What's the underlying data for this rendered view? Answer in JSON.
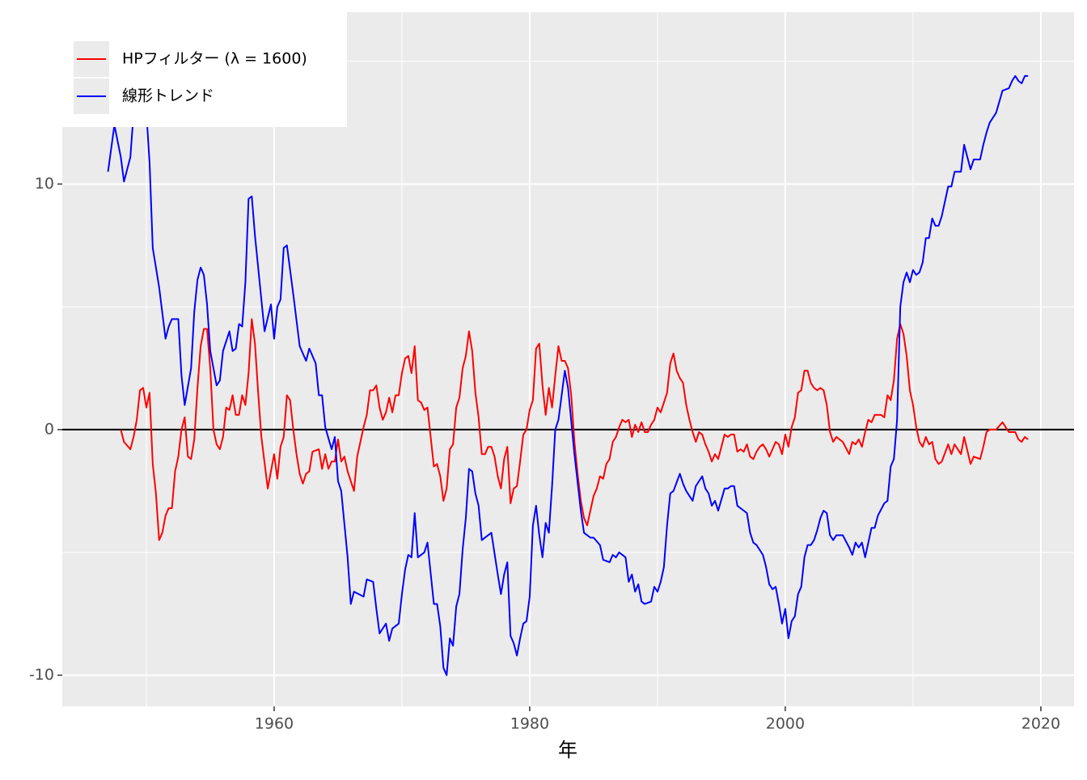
{
  "chart_data": {
    "type": "line",
    "x_label": "年",
    "xlim": [
      1943.42,
      2022.6
    ],
    "ylim": [
      -11.27,
      17.0
    ],
    "xticks": [
      1960,
      1980,
      2000,
      2020
    ],
    "yticks": [
      -10,
      0,
      10
    ],
    "grid": true,
    "hline": 0,
    "legend": "top-left",
    "series": [
      {
        "name": "HPフィルター (λ = 1600)",
        "color": "#ff0000",
        "x": [
          1948.0,
          1948.25,
          1948.75,
          1949.0,
          1949.25,
          1949.5,
          1949.75,
          1950.0,
          1950.25,
          1950.5,
          1950.75,
          1951.0,
          1951.25,
          1951.5,
          1951.75,
          1952.0,
          1952.25,
          1952.5,
          1952.75,
          1953.0,
          1953.25,
          1953.5,
          1953.75,
          1954.0,
          1954.25,
          1954.5,
          1954.75,
          1955.0,
          1955.25,
          1955.5,
          1955.75,
          1956.0,
          1956.25,
          1956.5,
          1956.75,
          1957.0,
          1957.25,
          1957.5,
          1957.75,
          1958.0,
          1958.25,
          1958.5,
          1958.75,
          1959.0,
          1959.5,
          1959.75,
          1960.0,
          1960.25,
          1960.5,
          1960.75,
          1961.0,
          1961.25,
          1961.5,
          1961.75,
          1962.0,
          1962.25,
          1962.5,
          1962.75,
          1963.0,
          1963.5,
          1963.75,
          1964.0,
          1964.25,
          1964.5,
          1964.75,
          1965.0,
          1965.25,
          1965.5,
          1965.75,
          1966.0,
          1966.25,
          1966.5,
          1966.75,
          1967.0,
          1967.25,
          1967.5,
          1967.75,
          1968.0,
          1968.25,
          1968.5,
          1968.75,
          1969.0,
          1969.25,
          1969.5,
          1969.75,
          1970.0,
          1970.25,
          1970.5,
          1970.75,
          1971.0,
          1971.25,
          1971.5,
          1971.75,
          1972.0,
          1972.25,
          1972.5,
          1972.75,
          1973.0,
          1973.25,
          1973.5,
          1973.75,
          1974.0,
          1974.25,
          1974.5,
          1974.75,
          1975.0,
          1975.25,
          1975.5,
          1975.75,
          1976.0,
          1976.25,
          1976.5,
          1976.75,
          1977.0,
          1977.25,
          1977.5,
          1977.75,
          1978.0,
          1978.25,
          1978.5,
          1978.75,
          1979.0,
          1979.25,
          1979.5,
          1979.75,
          1980.0,
          1980.25,
          1980.5,
          1980.75,
          1981.0,
          1981.25,
          1981.5,
          1981.75,
          1982.0,
          1982.25,
          1982.5,
          1982.75,
          1983.0,
          1983.25,
          1983.5,
          1983.75,
          1984.0,
          1984.25,
          1984.5,
          1984.75,
          1985.0,
          1985.25,
          1985.5,
          1985.75,
          1986.0,
          1986.25,
          1986.5,
          1986.75,
          1987.0,
          1987.25,
          1987.5,
          1987.75,
          1988.0,
          1988.25,
          1988.5,
          1988.75,
          1989.0,
          1989.25,
          1989.5,
          1989.75,
          1990.0,
          1990.25,
          1990.5,
          1990.75,
          1991.0,
          1991.25,
          1991.5,
          1991.75,
          1992.0,
          1992.25,
          1992.5,
          1992.75,
          1993.0,
          1993.25,
          1993.5,
          1993.75,
          1994.0,
          1994.25,
          1994.5,
          1994.75,
          1995.0,
          1995.25,
          1995.5,
          1995.75,
          1996.0,
          1996.25,
          1996.5,
          1996.75,
          1997.0,
          1997.25,
          1997.5,
          1997.75,
          1998.0,
          1998.25,
          1998.5,
          1998.75,
          1999.0,
          1999.25,
          1999.5,
          1999.75,
          2000.0,
          2000.25,
          2000.5,
          2000.75,
          2001.0,
          2001.25,
          2001.5,
          2001.75,
          2002.0,
          2002.25,
          2002.5,
          2002.75,
          2003.0,
          2003.25,
          2003.5,
          2003.75,
          2004.0,
          2004.5,
          2005.0,
          2005.25,
          2005.5,
          2005.75,
          2006.0,
          2006.25,
          2006.5,
          2006.75,
          2007.0,
          2007.5,
          2007.75,
          2008.0,
          2008.25,
          2008.5,
          2008.75,
          2009.0,
          2009.25,
          2009.5,
          2009.75,
          2010.0,
          2010.25,
          2010.5,
          2010.75,
          2011.0,
          2011.25,
          2011.5,
          2011.75,
          2012.0,
          2012.25,
          2012.75,
          2013.0,
          2013.25,
          2013.75,
          2014.0,
          2014.5,
          2014.75,
          2015.25,
          2015.5,
          2015.75,
          2016.0,
          2016.5,
          2017.0,
          2017.25,
          2017.5,
          2018.0,
          2018.25,
          2018.5,
          2018.75,
          2019.0
        ],
        "values": [
          0.0,
          -0.5,
          -0.8,
          -0.3,
          0.4,
          1.6,
          1.7,
          0.9,
          1.5,
          -1.4,
          -2.6,
          -4.5,
          -4.2,
          -3.5,
          -3.2,
          -3.2,
          -1.7,
          -1.1,
          0.0,
          0.5,
          -1.1,
          -1.2,
          -0.4,
          1.7,
          3.4,
          4.1,
          4.1,
          2.5,
          0.0,
          -0.6,
          -0.8,
          -0.3,
          0.9,
          0.8,
          1.4,
          0.6,
          0.6,
          1.4,
          1.0,
          2.3,
          4.5,
          3.5,
          1.5,
          -0.3,
          -2.4,
          -1.7,
          -1.0,
          -2.0,
          -0.7,
          -0.3,
          1.4,
          1.2,
          0.0,
          -1.0,
          -1.8,
          -2.2,
          -1.8,
          -1.7,
          -0.9,
          -0.8,
          -1.6,
          -1.0,
          -1.6,
          -1.3,
          -1.3,
          -0.4,
          -1.3,
          -1.1,
          -1.7,
          -2.1,
          -2.5,
          -1.1,
          -0.5,
          0.1,
          0.6,
          1.6,
          1.6,
          1.8,
          0.9,
          0.4,
          0.7,
          1.3,
          0.7,
          1.4,
          1.4,
          2.3,
          2.9,
          3.0,
          2.3,
          3.4,
          1.2,
          1.1,
          0.8,
          0.9,
          -0.3,
          -1.5,
          -1.4,
          -1.9,
          -2.9,
          -2.4,
          -0.8,
          -0.6,
          0.9,
          1.3,
          2.5,
          3.0,
          4.0,
          3.2,
          1.5,
          0.5,
          -1.0,
          -1.0,
          -0.7,
          -0.7,
          -1.1,
          -1.9,
          -2.4,
          -1.2,
          -0.7,
          -3.0,
          -2.4,
          -2.3,
          -1.3,
          -0.2,
          0.0,
          0.8,
          1.2,
          3.3,
          3.5,
          1.8,
          0.6,
          1.7,
          0.9,
          2.2,
          3.4,
          2.8,
          2.8,
          2.5,
          1.4,
          -0.5,
          -1.8,
          -2.9,
          -3.6,
          -3.9,
          -3.3,
          -2.7,
          -2.4,
          -1.9,
          -2.0,
          -1.4,
          -1.2,
          -0.5,
          -0.3,
          0.1,
          0.4,
          0.3,
          0.4,
          -0.3,
          0.2,
          -0.1,
          0.3,
          -0.1,
          -0.1,
          0.2,
          0.4,
          0.9,
          0.7,
          1.1,
          1.5,
          2.7,
          3.1,
          2.4,
          2.1,
          1.9,
          1.0,
          0.4,
          -0.1,
          -0.5,
          -0.1,
          -0.2,
          -0.6,
          -0.9,
          -1.3,
          -1.0,
          -1.2,
          -0.7,
          -0.2,
          -0.3,
          -0.2,
          -0.2,
          -0.9,
          -0.8,
          -0.9,
          -0.6,
          -1.1,
          -1.2,
          -0.9,
          -0.7,
          -0.6,
          -0.8,
          -1.1,
          -0.8,
          -0.5,
          -0.6,
          -1.0,
          -0.2,
          -0.7,
          0.1,
          0.5,
          1.5,
          1.6,
          2.4,
          2.4,
          1.9,
          1.7,
          1.6,
          1.7,
          1.6,
          1.0,
          -0.1,
          -0.5,
          -0.3,
          -0.5,
          -1.0,
          -0.5,
          -0.6,
          -0.4,
          -0.7,
          -0.1,
          0.4,
          0.3,
          0.6,
          0.6,
          0.5,
          1.4,
          1.2,
          2.0,
          3.7,
          4.3,
          3.9,
          3.0,
          1.6,
          1.0,
          0.1,
          -0.5,
          -0.7,
          -0.3,
          -0.6,
          -0.5,
          -1.2,
          -1.4,
          -1.3,
          -0.6,
          -1.0,
          -0.6,
          -1.0,
          -0.3,
          -1.4,
          -1.1,
          -1.2,
          -0.7,
          -0.1,
          0.0,
          0.0,
          0.3,
          0.1,
          -0.1,
          -0.1,
          -0.4,
          -0.5,
          -0.3,
          -0.4
        ]
      },
      {
        "name": "線形トレンド",
        "color": "#0000ff",
        "x": [
          1947.0,
          1947.5,
          1948.0,
          1948.25,
          1948.75,
          1949.0,
          1949.5,
          1950.0,
          1950.25,
          1950.5,
          1951.0,
          1951.5,
          1951.75,
          1952.0,
          1952.5,
          1952.75,
          1953.0,
          1953.5,
          1953.75,
          1954.0,
          1954.25,
          1954.5,
          1954.75,
          1955.0,
          1955.5,
          1955.75,
          1956.0,
          1956.5,
          1956.75,
          1957.0,
          1957.25,
          1957.5,
          1957.75,
          1958.0,
          1958.25,
          1958.5,
          1958.75,
          1959.25,
          1959.75,
          1960.0,
          1960.25,
          1960.5,
          1960.75,
          1961.0,
          1961.5,
          1962.0,
          1962.5,
          1962.75,
          1963.25,
          1963.5,
          1963.75,
          1964.0,
          1964.5,
          1964.75,
          1965.0,
          1965.25,
          1965.75,
          1966.0,
          1966.25,
          1967.0,
          1967.25,
          1967.75,
          1968.0,
          1968.25,
          1968.75,
          1969.0,
          1969.25,
          1969.75,
          1970.0,
          1970.25,
          1970.5,
          1970.75,
          1971.0,
          1971.25,
          1971.75,
          1972.0,
          1972.5,
          1972.75,
          1973.0,
          1973.25,
          1973.5,
          1973.75,
          1974.0,
          1974.25,
          1974.5,
          1974.75,
          1975.0,
          1975.25,
          1975.5,
          1975.75,
          1976.0,
          1976.25,
          1976.75,
          1977.0,
          1977.5,
          1977.75,
          1978.0,
          1978.25,
          1978.5,
          1978.75,
          1979.0,
          1979.25,
          1979.5,
          1979.75,
          1980.0,
          1980.25,
          1980.5,
          1980.75,
          1981.0,
          1981.25,
          1981.5,
          1981.75,
          1982.0,
          1982.25,
          1982.5,
          1982.75,
          1983.0,
          1983.5,
          1984.0,
          1984.25,
          1984.75,
          1985.0,
          1985.5,
          1985.75,
          1986.25,
          1986.5,
          1986.75,
          1987.0,
          1987.5,
          1987.75,
          1988.0,
          1988.25,
          1988.5,
          1988.75,
          1989.0,
          1989.5,
          1989.75,
          1990.0,
          1990.25,
          1990.5,
          1990.75,
          1991.0,
          1991.25,
          1991.75,
          1992.0,
          1992.25,
          1992.75,
          1993.0,
          1993.5,
          1993.75,
          1994.0,
          1994.25,
          1994.5,
          1994.75,
          1995.25,
          1995.5,
          1995.75,
          1996.0,
          1996.25,
          1996.75,
          1997.0,
          1997.25,
          1997.5,
          1997.75,
          1998.25,
          1998.5,
          1998.75,
          1999.0,
          1999.25,
          1999.5,
          1999.75,
          2000.0,
          2000.25,
          2000.5,
          2000.75,
          2001.0,
          2001.25,
          2001.5,
          2001.75,
          2002.0,
          2002.25,
          2002.5,
          2002.75,
          2003.0,
          2003.25,
          2003.5,
          2003.75,
          2004.0,
          2004.5,
          2005.0,
          2005.25,
          2005.5,
          2005.75,
          2006.0,
          2006.25,
          2006.75,
          2007.0,
          2007.25,
          2007.75,
          2008.0,
          2008.25,
          2008.5,
          2008.75,
          2009.0,
          2009.25,
          2009.5,
          2009.75,
          2010.0,
          2010.25,
          2010.5,
          2010.75,
          2011.0,
          2011.25,
          2011.5,
          2011.75,
          2012.0,
          2012.25,
          2012.75,
          2013.0,
          2013.25,
          2013.75,
          2014.0,
          2014.25,
          2014.5,
          2014.75,
          2015.25,
          2015.5,
          2015.75,
          2016.0,
          2016.5,
          2017.0,
          2017.5,
          2017.75,
          2018.0,
          2018.25,
          2018.5,
          2018.75,
          2019.0
        ],
        "values": [
          10.5,
          12.4,
          11.1,
          10.1,
          11.1,
          12.9,
          13.5,
          12.9,
          10.9,
          7.4,
          5.8,
          3.7,
          4.2,
          4.5,
          4.5,
          2.2,
          1.0,
          2.5,
          4.8,
          6.1,
          6.6,
          6.3,
          5.1,
          3.2,
          1.8,
          2.0,
          3.2,
          4.0,
          3.2,
          3.3,
          4.3,
          4.2,
          6.0,
          9.4,
          9.5,
          7.9,
          6.6,
          4.0,
          5.1,
          3.7,
          5.0,
          5.3,
          7.4,
          7.5,
          5.5,
          3.4,
          2.8,
          3.3,
          2.7,
          1.4,
          1.4,
          0.1,
          -0.8,
          -0.3,
          -2.1,
          -2.5,
          -5.2,
          -7.1,
          -6.6,
          -6.8,
          -6.1,
          -6.2,
          -7.3,
          -8.3,
          -7.9,
          -8.6,
          -8.1,
          -7.9,
          -6.7,
          -5.7,
          -5.1,
          -5.2,
          -3.4,
          -5.2,
          -5.0,
          -4.6,
          -7.1,
          -7.1,
          -8.0,
          -9.7,
          -10.0,
          -8.5,
          -8.8,
          -7.2,
          -6.7,
          -4.9,
          -3.6,
          -1.6,
          -1.7,
          -2.6,
          -3.1,
          -4.5,
          -4.3,
          -4.2,
          -5.9,
          -6.7,
          -5.9,
          -5.4,
          -8.4,
          -8.7,
          -9.2,
          -8.5,
          -7.9,
          -7.8,
          -6.8,
          -3.9,
          -3.1,
          -4.3,
          -5.2,
          -3.8,
          -4.2,
          -2.3,
          0.0,
          0.4,
          1.4,
          2.4,
          1.7,
          -1.0,
          -3.3,
          -4.2,
          -4.4,
          -4.4,
          -4.7,
          -5.3,
          -5.4,
          -5.1,
          -5.2,
          -5.0,
          -5.2,
          -6.2,
          -5.9,
          -6.6,
          -6.3,
          -7.0,
          -7.1,
          -7.0,
          -6.4,
          -6.6,
          -6.2,
          -5.6,
          -3.9,
          -2.6,
          -2.5,
          -1.8,
          -2.2,
          -2.5,
          -2.9,
          -2.3,
          -1.9,
          -2.4,
          -2.6,
          -3.1,
          -2.9,
          -3.3,
          -2.4,
          -2.4,
          -2.3,
          -2.3,
          -3.1,
          -3.3,
          -3.4,
          -4.2,
          -4.6,
          -4.7,
          -5.1,
          -5.6,
          -6.3,
          -6.5,
          -6.4,
          -7.1,
          -7.9,
          -7.3,
          -8.5,
          -7.8,
          -7.6,
          -6.7,
          -6.4,
          -5.2,
          -4.7,
          -4.7,
          -4.5,
          -4.1,
          -3.6,
          -3.3,
          -3.4,
          -4.3,
          -4.5,
          -4.3,
          -4.3,
          -4.8,
          -5.1,
          -4.6,
          -4.8,
          -4.6,
          -5.2,
          -4.0,
          -4.0,
          -3.5,
          -3.0,
          -2.9,
          -1.5,
          -1.2,
          0.4,
          5.0,
          6.0,
          6.4,
          6.0,
          6.5,
          6.3,
          6.4,
          6.8,
          7.8,
          7.8,
          8.6,
          8.3,
          8.3,
          8.7,
          9.9,
          9.9,
          10.5,
          10.5,
          11.6,
          11.1,
          10.6,
          11.0,
          11.0,
          11.6,
          12.1,
          12.5,
          12.9,
          13.8,
          13.9,
          14.2,
          14.4,
          14.2,
          14.1,
          14.4,
          14.4
        ]
      }
    ]
  }
}
